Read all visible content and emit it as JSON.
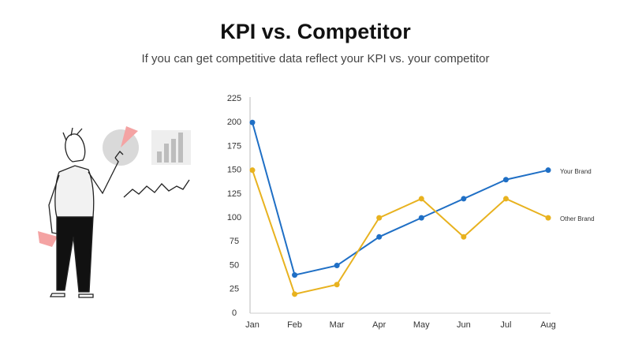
{
  "chart_data": {
    "type": "line",
    "title": "KPI vs. Competitor",
    "subtitle": "If you can get competitive data reflect your KPI vs. your competitor",
    "categories": [
      "Jan",
      "Feb",
      "Mar",
      "Apr",
      "May",
      "Jun",
      "Jul",
      "Aug"
    ],
    "series": [
      {
        "name": "Your Brand",
        "color": "#1f6fc5",
        "values": [
          200,
          40,
          50,
          80,
          100,
          120,
          140,
          150
        ]
      },
      {
        "name": "Other Brand",
        "color": "#e8b21f",
        "values": [
          150,
          20,
          30,
          100,
          120,
          80,
          120,
          100
        ]
      }
    ],
    "ylim": [
      0,
      225
    ],
    "yticks": [
      0,
      25,
      50,
      75,
      100,
      125,
      150,
      175,
      200,
      225
    ],
    "grid": false
  }
}
